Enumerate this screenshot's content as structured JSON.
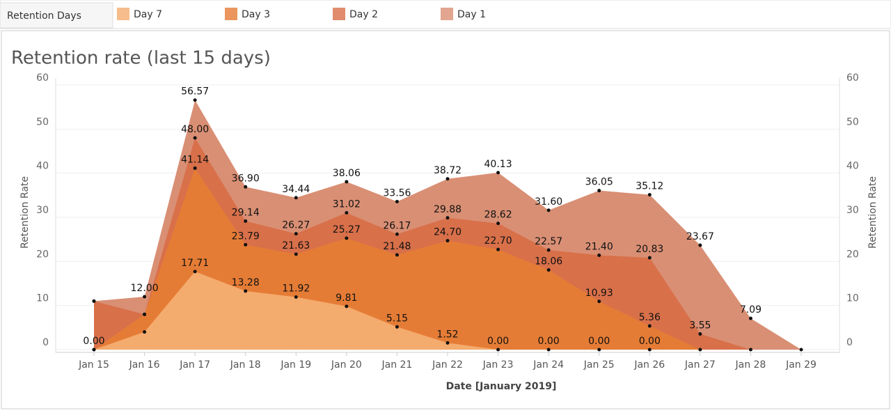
{
  "chart_data": {
    "type": "area",
    "title": "Retention rate (last 15 days)",
    "legend_title": "Retention Days",
    "x_label": "Date [January 2019]",
    "y_label": "Retention Rate",
    "y2_label": "Retention Rate",
    "categories": [
      "Jan 15",
      "Jan 16",
      "Jan 17",
      "Jan 18",
      "Jan 19",
      "Jan 20",
      "Jan 21",
      "Jan 22",
      "Jan 23",
      "Jan 24",
      "Jan 25",
      "Jan 26",
      "Jan 27",
      "Jan 28",
      "Jan 29"
    ],
    "ylim": [
      0,
      60
    ],
    "yticks": [
      0,
      10,
      20,
      30,
      40,
      50,
      60
    ],
    "y2lim": [
      0,
      60
    ],
    "y2ticks": [
      0,
      10,
      20,
      30,
      40,
      50,
      60
    ],
    "grid": true,
    "series": [
      {
        "name": "Day 1",
        "color": "#d98f74",
        "values": [
          11,
          12,
          56.57,
          36.9,
          34.44,
          38.06,
          33.56,
          38.72,
          40.13,
          31.6,
          36.05,
          35.12,
          23.67,
          7.09,
          0
        ],
        "value_labels": [
          null,
          "12.00",
          "56.57",
          "36.90",
          "34.44",
          "38.06",
          "33.56",
          "38.72",
          "40.13",
          "31.60",
          "36.05",
          "35.12",
          "23.67",
          "7.09",
          null
        ]
      },
      {
        "name": "Day 2",
        "color": "#d8704a",
        "values": [
          11,
          8,
          48,
          29.14,
          26.27,
          31.02,
          26.17,
          29.88,
          28.62,
          22.57,
          21.4,
          20.83,
          3.55,
          0,
          null
        ],
        "value_labels": [
          null,
          null,
          "48.00",
          "29.14",
          "26.27",
          "31.02",
          "26.17",
          "29.88",
          "28.62",
          "22.57",
          "21.40",
          "20.83",
          "3.55",
          null,
          null
        ]
      },
      {
        "name": "Day 3",
        "color": "#e57c36",
        "values": [
          0,
          8,
          41.14,
          23.79,
          21.63,
          25.27,
          21.48,
          24.7,
          22.7,
          18.06,
          10.93,
          5.36,
          0,
          null,
          null
        ],
        "value_labels": [
          null,
          null,
          "41.14",
          "23.79",
          "21.63",
          "25.27",
          "21.48",
          "24.70",
          "22.70",
          "18.06",
          "10.93",
          "5.36",
          null,
          null,
          null
        ]
      },
      {
        "name": "Day 7",
        "color": "#f4ab6e",
        "values": [
          0,
          4,
          17.71,
          13.28,
          11.92,
          9.81,
          5.15,
          1.52,
          0,
          0,
          0,
          0,
          null,
          null,
          null
        ],
        "value_labels": [
          "0.00",
          null,
          "17.71",
          "13.28",
          "11.92",
          "9.81",
          "5.15",
          "1.52",
          "0.00",
          "0.00",
          "0.00",
          "0.00",
          null,
          null,
          null
        ]
      }
    ]
  }
}
